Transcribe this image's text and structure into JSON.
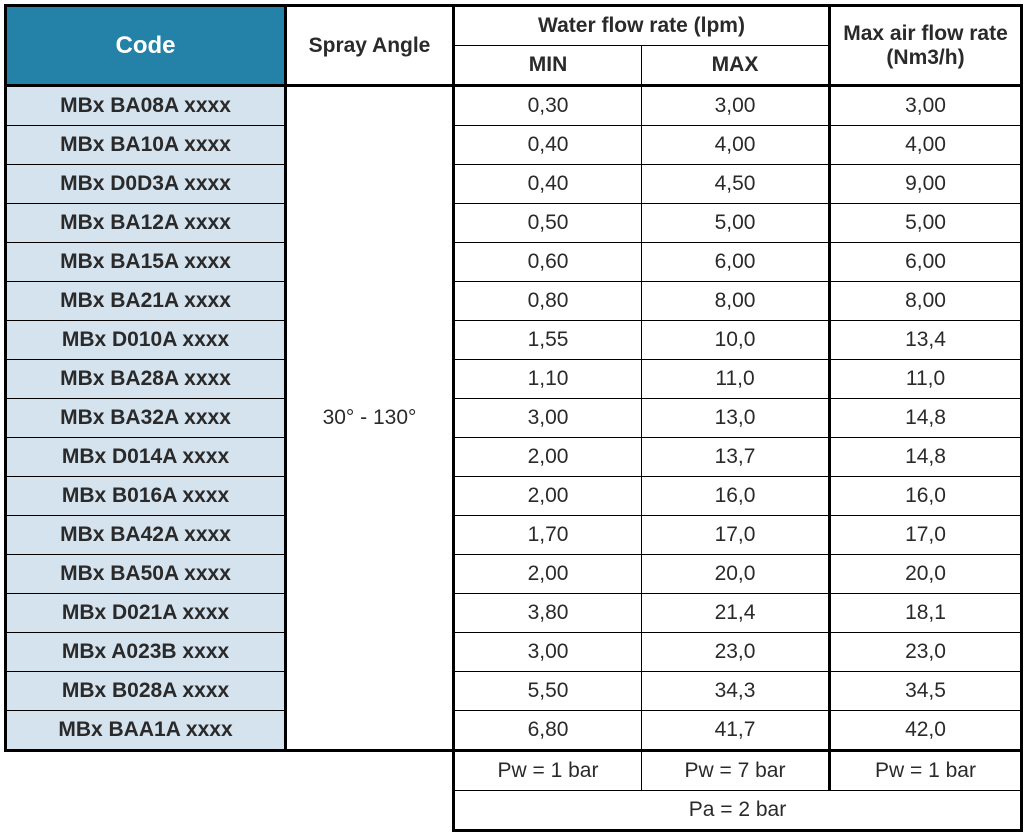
{
  "headers": {
    "code": "Code",
    "spray_angle": "Spray Angle",
    "water_flow": "Water flow rate (lpm)",
    "min": "MIN",
    "max": "MAX",
    "max_air": "Max air flow rate (Nm3/h)"
  },
  "spray_angle_value": "30° - 130°",
  "rows": [
    {
      "code": "MBx BA08A xxxx",
      "min": "0,30",
      "max": "3,00",
      "air": "3,00"
    },
    {
      "code": "MBx BA10A xxxx",
      "min": "0,40",
      "max": "4,00",
      "air": "4,00"
    },
    {
      "code": "MBx D0D3A xxxx",
      "min": "0,40",
      "max": "4,50",
      "air": "9,00"
    },
    {
      "code": "MBx BA12A xxxx",
      "min": "0,50",
      "max": "5,00",
      "air": "5,00"
    },
    {
      "code": "MBx BA15A xxxx",
      "min": "0,60",
      "max": "6,00",
      "air": "6,00"
    },
    {
      "code": "MBx BA21A xxxx",
      "min": "0,80",
      "max": "8,00",
      "air": "8,00"
    },
    {
      "code": "MBx D010A xxxx",
      "min": "1,55",
      "max": "10,0",
      "air": "13,4"
    },
    {
      "code": "MBx BA28A xxxx",
      "min": "1,10",
      "max": "11,0",
      "air": "11,0"
    },
    {
      "code": "MBx BA32A xxxx",
      "min": "3,00",
      "max": "13,0",
      "air": "14,8"
    },
    {
      "code": "MBx D014A xxxx",
      "min": "2,00",
      "max": "13,7",
      "air": "14,8"
    },
    {
      "code": "MBx B016A xxxx",
      "min": "2,00",
      "max": "16,0",
      "air": "16,0"
    },
    {
      "code": "MBx BA42A xxxx",
      "min": "1,70",
      "max": "17,0",
      "air": "17,0"
    },
    {
      "code": "MBx BA50A xxxx",
      "min": "2,00",
      "max": "20,0",
      "air": "20,0"
    },
    {
      "code": "MBx D021A xxxx",
      "min": "3,80",
      "max": "21,4",
      "air": "18,1"
    },
    {
      "code": "MBx A023B xxxx",
      "min": "3,00",
      "max": "23,0",
      "air": "23,0"
    },
    {
      "code": "MBx B028A xxxx",
      "min": "5,50",
      "max": "34,3",
      "air": "34,5"
    },
    {
      "code": "MBx BAA1A xxxx",
      "min": "6,80",
      "max": "41,7",
      "air": "42,0"
    }
  ],
  "footer": {
    "pw_min": "Pw = 1 bar",
    "pw_max": "Pw = 7 bar",
    "pw_air": "Pw = 1 bar",
    "pa": "Pa = 2 bar"
  },
  "colors": {
    "header_bg": "#2481a7",
    "header_text": "#ffffff",
    "code_bg": "#d5e3ef",
    "border": "#000000",
    "text": "#2a2a2a"
  }
}
